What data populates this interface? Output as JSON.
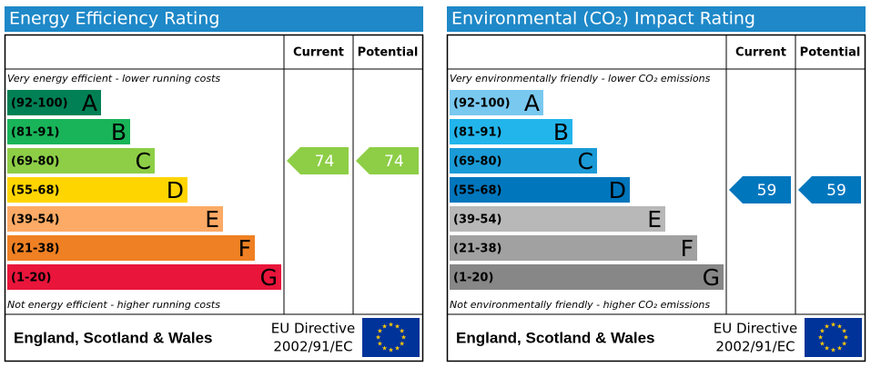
{
  "chart_data": [
    {
      "type": "epc",
      "title": "Energy Efficiency Rating",
      "column_labels": [
        "Current",
        "Potential"
      ],
      "top_note": "Very energy efficient - lower running costs",
      "bottom_note": "Not energy efficient - higher running costs",
      "bands": [
        {
          "label": "(92-100)",
          "letter": "A",
          "color": "#008054"
        },
        {
          "label": "(81-91)",
          "letter": "B",
          "color": "#19b459"
        },
        {
          "label": "(69-80)",
          "letter": "C",
          "color": "#8dce46"
        },
        {
          "label": "(55-68)",
          "letter": "D",
          "color": "#ffd500"
        },
        {
          "label": "(39-54)",
          "letter": "E",
          "color": "#fcaa65"
        },
        {
          "label": "(21-38)",
          "letter": "F",
          "color": "#ef8023"
        },
        {
          "label": "(1-20)",
          "letter": "G",
          "color": "#e9153b"
        }
      ],
      "current": 74,
      "potential": 74,
      "region": "England, Scotland & Wales",
      "directive": [
        "EU Directive",
        "2002/91/EC"
      ]
    },
    {
      "type": "epc",
      "title": "Environmental (CO₂) Impact Rating",
      "column_labels": [
        "Current",
        "Potential"
      ],
      "top_note": "Very environmentally friendly - lower CO₂ emissions",
      "bottom_note": "Not environmentally friendly - higher CO₂ emissions",
      "bands": [
        {
          "label": "(92-100)",
          "letter": "A",
          "color": "#79c8f0"
        },
        {
          "label": "(81-91)",
          "letter": "B",
          "color": "#22b5eb"
        },
        {
          "label": "(69-80)",
          "letter": "C",
          "color": "#1a9bd7"
        },
        {
          "label": "(55-68)",
          "letter": "D",
          "color": "#0076bd"
        },
        {
          "label": "(39-54)",
          "letter": "E",
          "color": "#b8b8b8"
        },
        {
          "label": "(21-38)",
          "letter": "F",
          "color": "#a1a1a1"
        },
        {
          "label": "(1-20)",
          "letter": "G",
          "color": "#878787"
        }
      ],
      "current": 59,
      "potential": 59,
      "region": "England, Scotland & Wales",
      "directive": [
        "EU Directive",
        "2002/91/EC"
      ]
    }
  ]
}
